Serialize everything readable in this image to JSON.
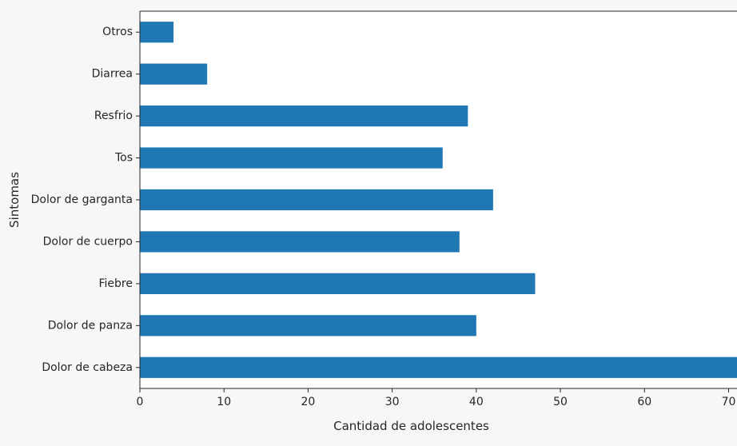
{
  "chart_data": {
    "type": "bar",
    "orientation": "horizontal",
    "categories": [
      "Dolor de cabeza",
      "Dolor de panza",
      "Fiebre",
      "Dolor de cuerpo",
      "Dolor de garganta",
      "Tos",
      "Resfrio",
      "Diarrea",
      "Otros"
    ],
    "values": [
      71,
      40,
      47,
      38,
      42,
      36,
      39,
      8,
      4
    ],
    "xlabel": "Cantidad de adolescentes",
    "ylabel": "Sintomas",
    "xlim": [
      0,
      71
    ],
    "xticks": [
      0,
      10,
      20,
      30,
      40,
      50,
      60,
      70
    ],
    "grid": false,
    "colors": {
      "bar": "#1f77b4",
      "axis": "#262626",
      "plot_bg": "#ffffff",
      "page_bg": "#f7f7f7"
    }
  }
}
